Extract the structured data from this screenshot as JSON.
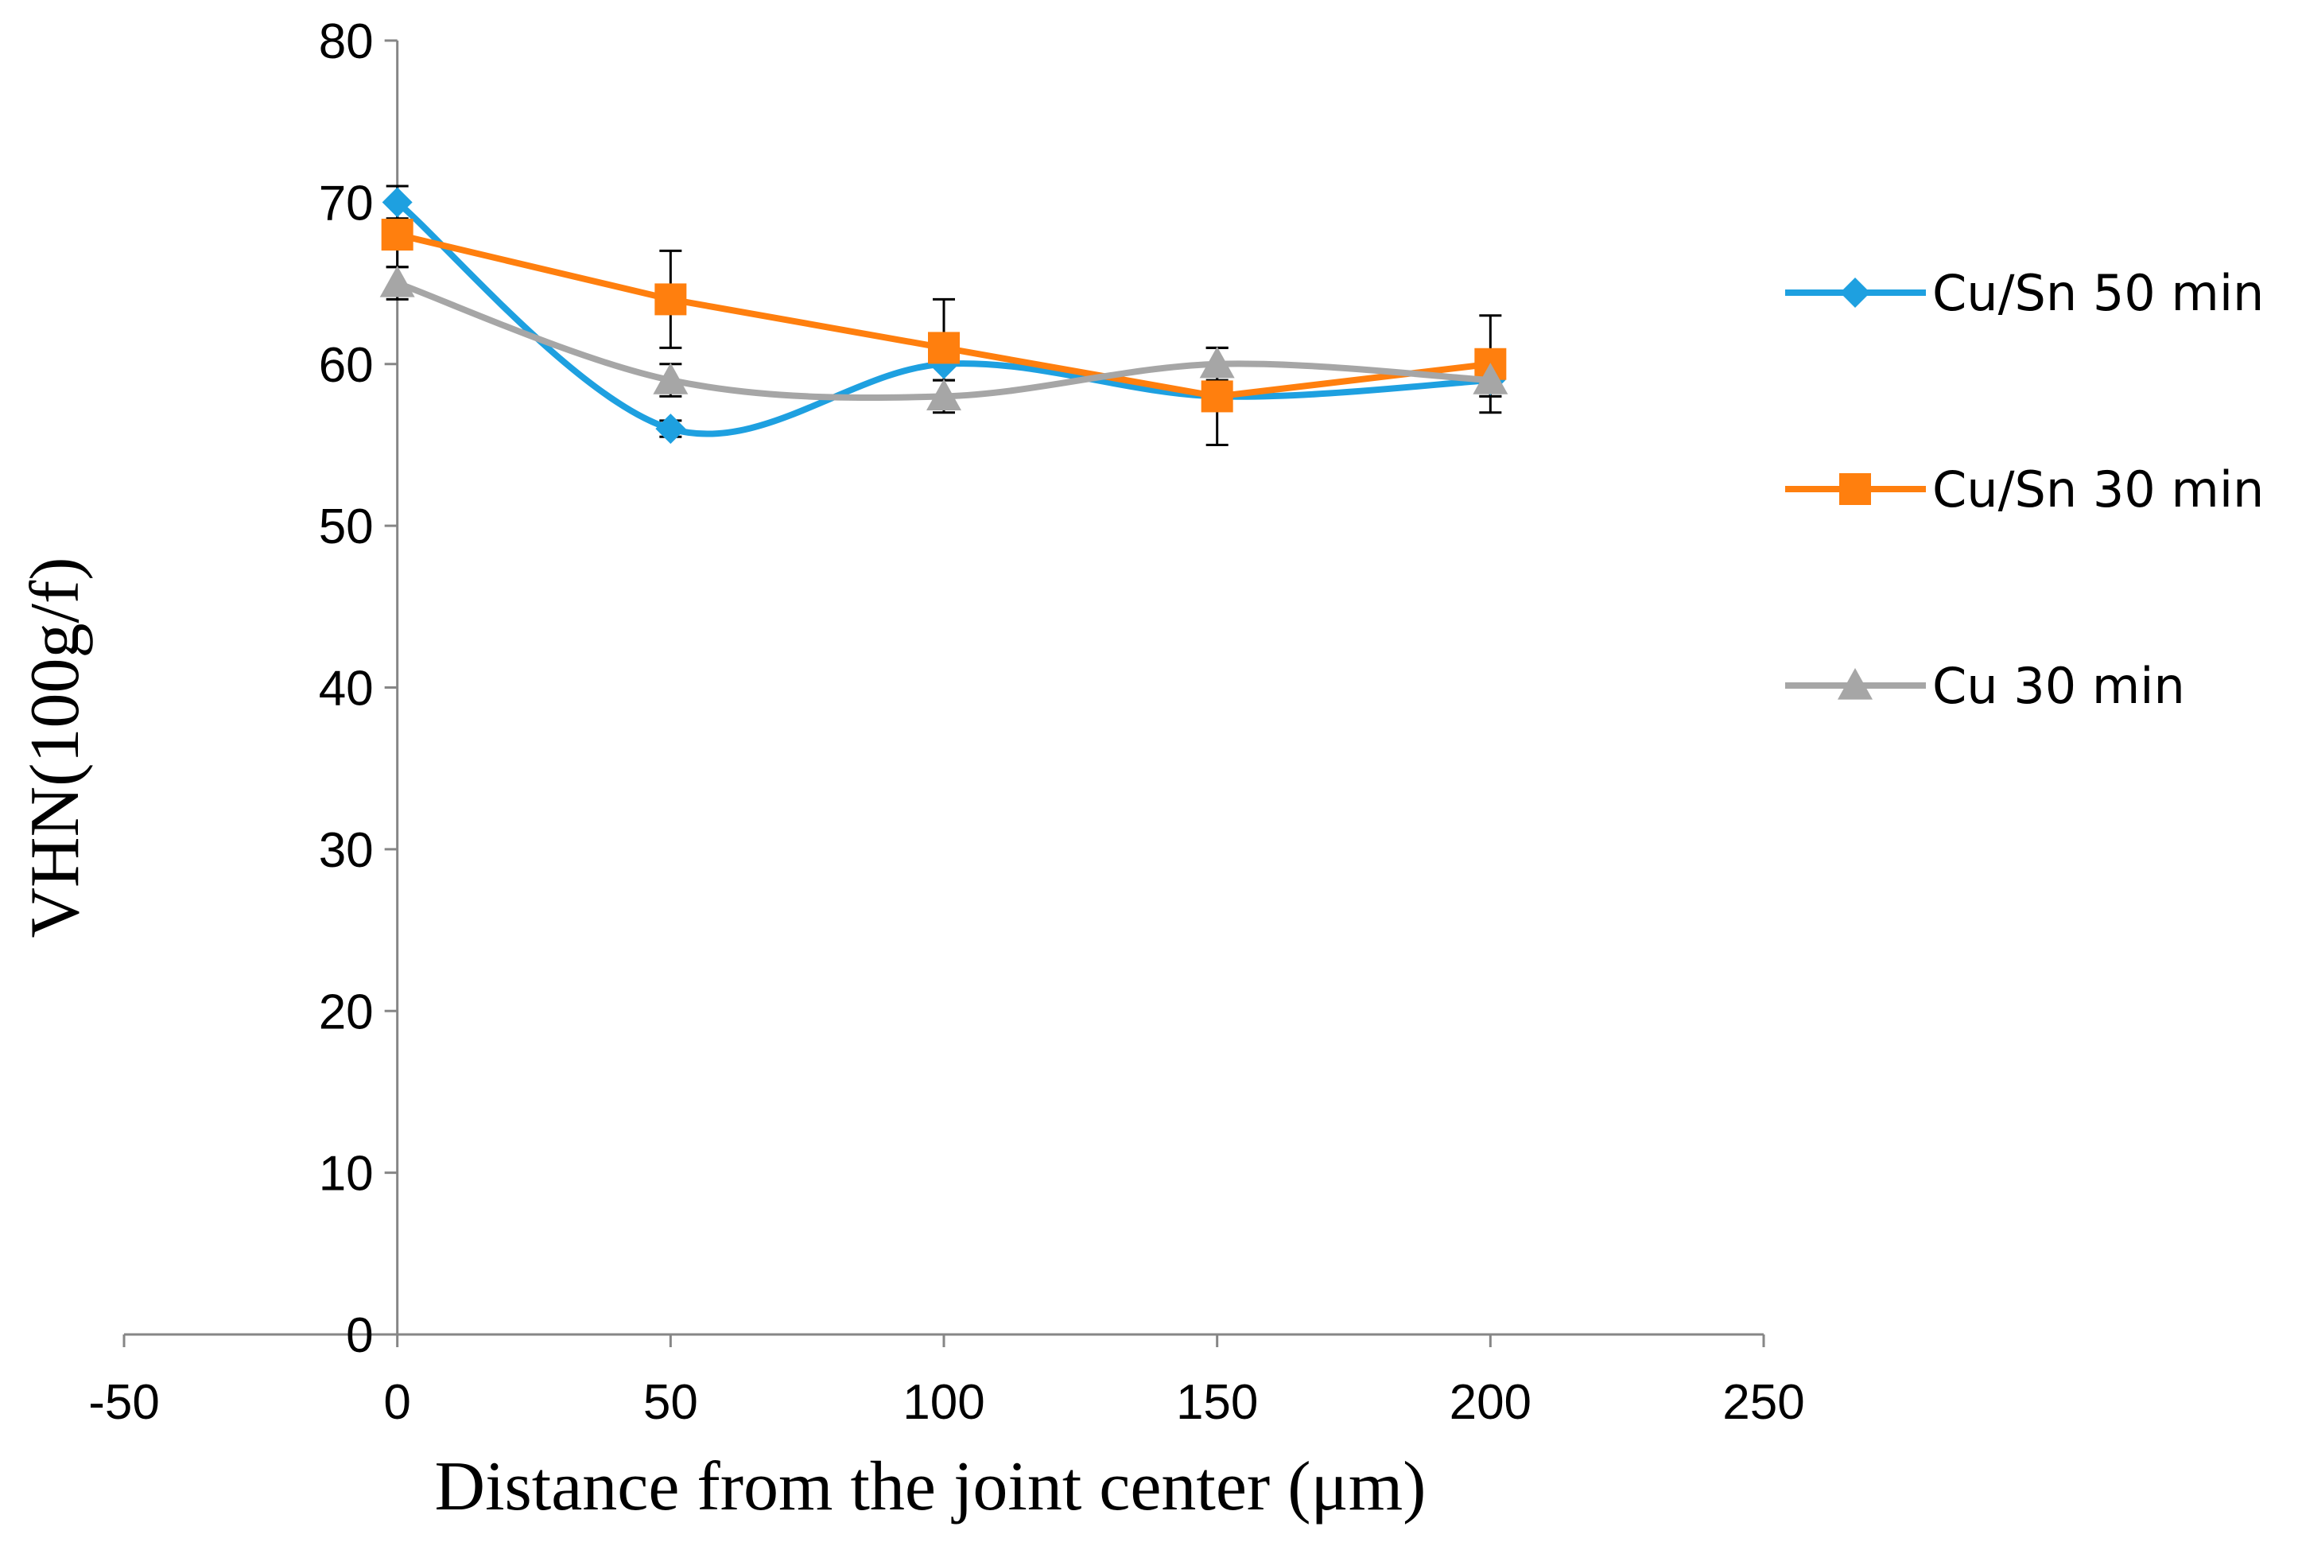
{
  "chart_data": {
    "type": "line",
    "title": "",
    "xlabel": "Distance from the joint center (μm)",
    "ylabel": "VHN(100g/f)",
    "xlim": [
      -50,
      250
    ],
    "ylim": [
      0,
      80
    ],
    "xticks": [
      -50,
      0,
      50,
      100,
      150,
      200,
      250
    ],
    "yticks": [
      0,
      10,
      20,
      30,
      40,
      50,
      60,
      70,
      80
    ],
    "grid": false,
    "legend_position": "right",
    "series": [
      {
        "name": "Cu/Sn 50 min",
        "color": "#1EA0E0",
        "marker": "diamond",
        "smooth": true,
        "x": [
          0,
          50,
          100,
          150,
          200
        ],
        "y": [
          70,
          56,
          60,
          58,
          59
        ],
        "errors": [
          1,
          0.5,
          1,
          0.5,
          1
        ]
      },
      {
        "name": "Cu/Sn 30 min",
        "color": "#FF7F0E",
        "marker": "square",
        "smooth": false,
        "x": [
          0,
          50,
          100,
          150,
          200
        ],
        "y": [
          68,
          64,
          61,
          58,
          60
        ],
        "errors": [
          2,
          3,
          3,
          3,
          3
        ]
      },
      {
        "name": "Cu 30 min",
        "color": "#A6A6A6",
        "marker": "triangle",
        "smooth": true,
        "x": [
          0,
          50,
          100,
          150,
          200
        ],
        "y": [
          65,
          59,
          58,
          60,
          59
        ],
        "errors": [
          1,
          1,
          1,
          1,
          1
        ]
      }
    ]
  }
}
